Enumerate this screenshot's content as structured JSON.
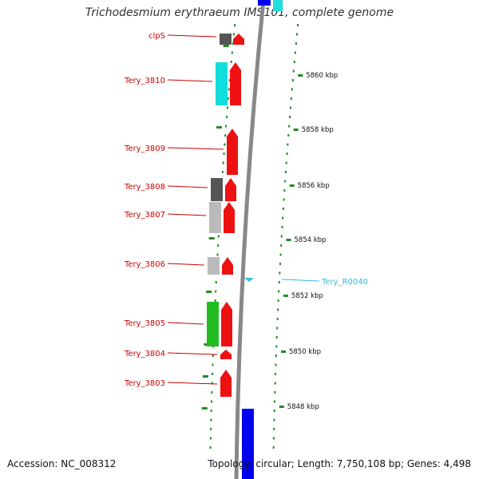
{
  "title": "Trichodesmium erythraeum IMS101, complete genome",
  "footer": {
    "accession": "Accession: NC_008312",
    "summary": "Topology: circular; Length: 7,750,108 bp; Genes: 4,498"
  },
  "colors": {
    "gene_label": "#cc0000",
    "rna_label": "#33bbdd",
    "forward_gene": "#ee1111",
    "backbone": "#888888",
    "tick": "#228b22",
    "blue_feature": "#0000ee",
    "cyan_feature": "#22dddd",
    "green_feature": "#22bb22"
  },
  "genes": [
    {
      "label": "clpS",
      "color_left": "#555555"
    },
    {
      "label": "Tery_3810",
      "color_left": "#11dddd"
    },
    {
      "label": "Tery_3809",
      "color_left": ""
    },
    {
      "label": "Tery_3808",
      "color_left": "#555555"
    },
    {
      "label": "Tery_3807",
      "color_left": "#bbbbbb"
    },
    {
      "label": "Tery_3806",
      "color_left": "#bbbbbb"
    },
    {
      "label": "Tery_3805",
      "color_left": "#22bb22"
    },
    {
      "label": "Tery_3804",
      "color_left": ""
    },
    {
      "label": "Tery_3803",
      "color_left": ""
    }
  ],
  "rna": {
    "label": "Tery_R0040"
  },
  "scale": [
    {
      "label": "5860 kbp"
    },
    {
      "label": "5858 kbp"
    },
    {
      "label": "5856 kbp"
    },
    {
      "label": "5854 kbp"
    },
    {
      "label": "5852 kbp"
    },
    {
      "label": "5850 kbp"
    },
    {
      "label": "5848 kbp"
    }
  ]
}
